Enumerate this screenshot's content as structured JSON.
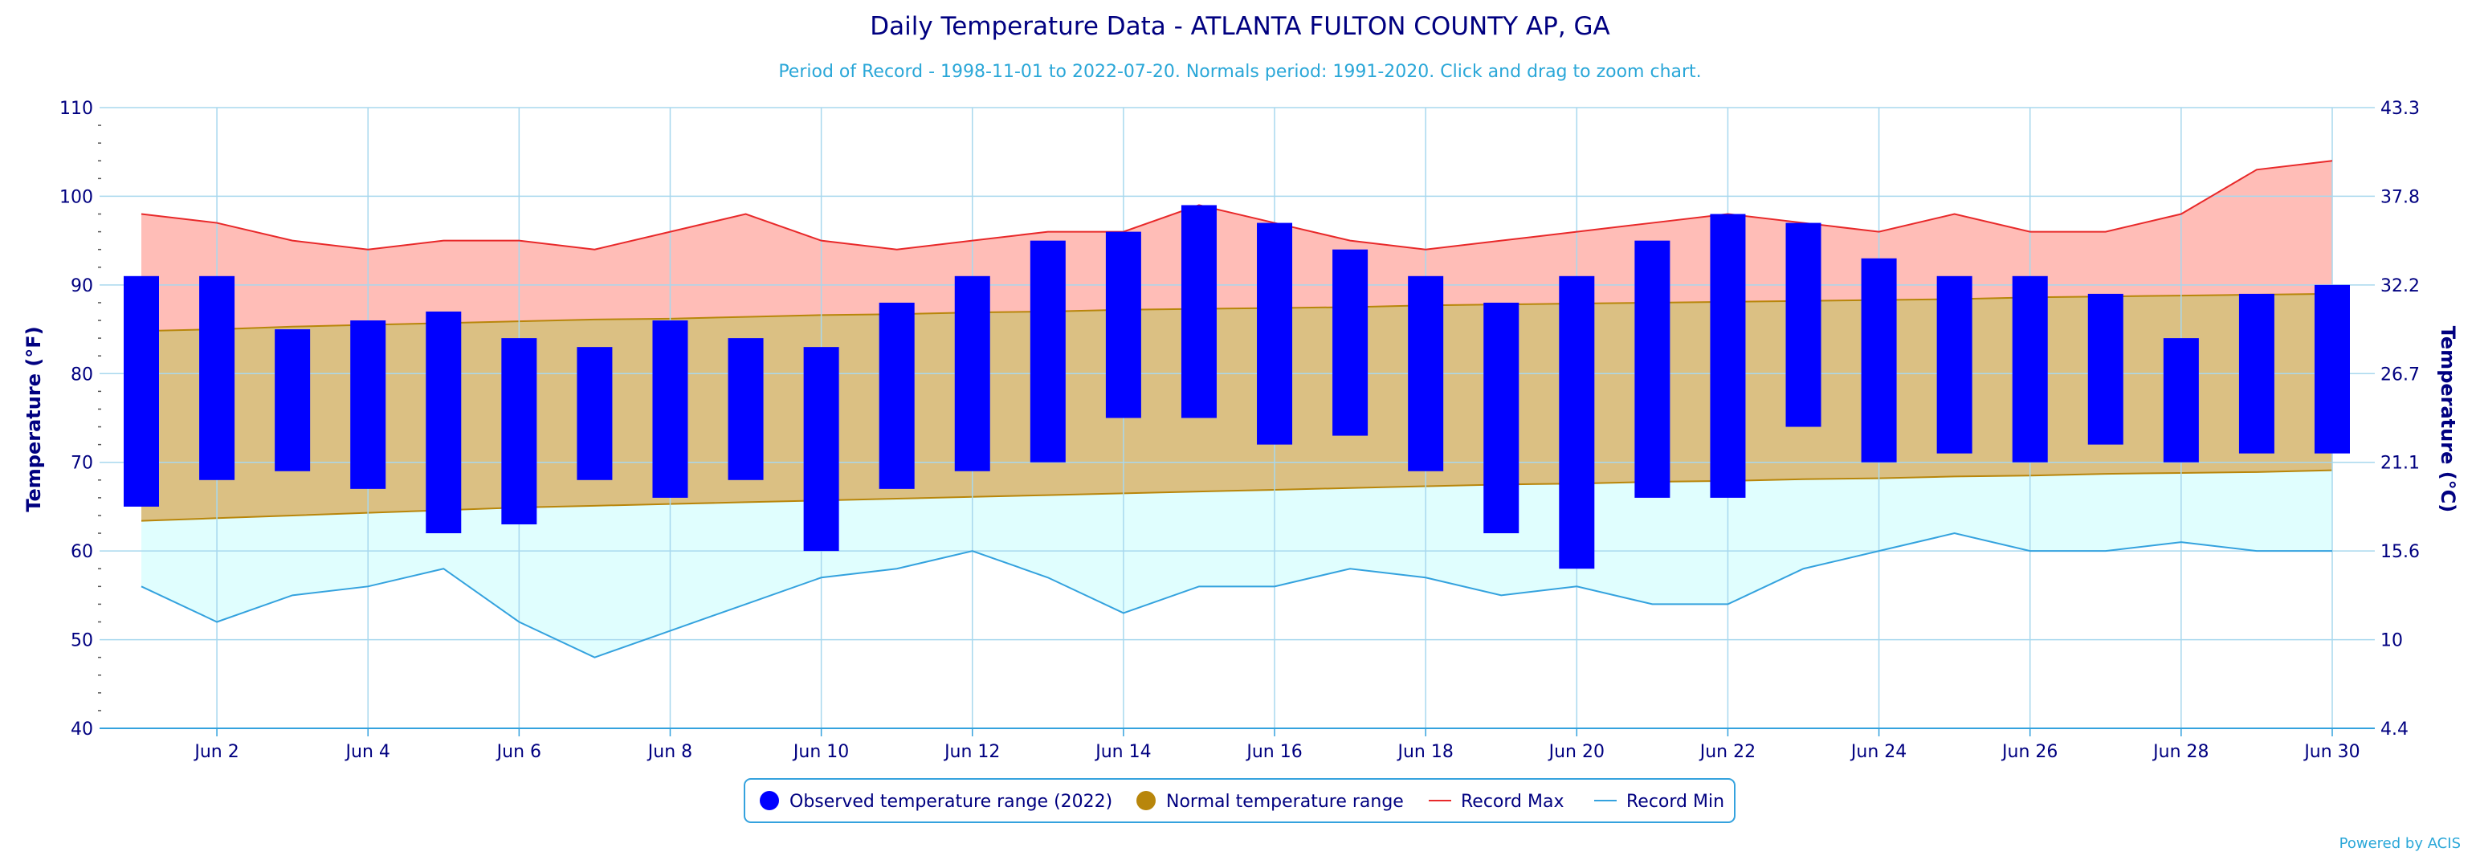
{
  "chart_data": {
    "type": "bar",
    "title": "Daily Temperature Data - ATLANTA FULTON COUNTY AP, GA",
    "subtitle": "Period of Record - 1998-11-01 to 2022-07-20. Normals period: 1991-2020. Click and drag to zoom chart.",
    "ylabel": "Temperature (°F)",
    "y2label": "Temperature (°C)",
    "ylim": [
      40,
      110
    ],
    "yticks": [
      40,
      50,
      60,
      70,
      80,
      90,
      100,
      110
    ],
    "y2ticks": [
      "4.4",
      "10",
      "15.6",
      "21.1",
      "26.7",
      "32.2",
      "37.8",
      "43.3"
    ],
    "xlim": [
      1,
      30
    ],
    "xticks": [
      {
        "day": 2,
        "label": "Jun 2"
      },
      {
        "day": 4,
        "label": "Jun 4"
      },
      {
        "day": 6,
        "label": "Jun 6"
      },
      {
        "day": 8,
        "label": "Jun 8"
      },
      {
        "day": 10,
        "label": "Jun 10"
      },
      {
        "day": 12,
        "label": "Jun 12"
      },
      {
        "day": 14,
        "label": "Jun 14"
      },
      {
        "day": 16,
        "label": "Jun 16"
      },
      {
        "day": 18,
        "label": "Jun 18"
      },
      {
        "day": 20,
        "label": "Jun 20"
      },
      {
        "day": 22,
        "label": "Jun 22"
      },
      {
        "day": 24,
        "label": "Jun 24"
      },
      {
        "day": 26,
        "label": "Jun 26"
      },
      {
        "day": 28,
        "label": "Jun 28"
      },
      {
        "day": 30,
        "label": "Jun 30"
      }
    ],
    "days": [
      1,
      2,
      3,
      4,
      5,
      6,
      7,
      8,
      9,
      10,
      11,
      12,
      13,
      14,
      15,
      16,
      17,
      18,
      19,
      20,
      21,
      22,
      23,
      24,
      25,
      26,
      27,
      28,
      29,
      30
    ],
    "series": [
      {
        "name": "Observed temperature range (2022)",
        "low": [
          65,
          68,
          69,
          67,
          62,
          63,
          68,
          66,
          68,
          60,
          67,
          69,
          70,
          75,
          75,
          72,
          73,
          69,
          62,
          58,
          66,
          66,
          74,
          70,
          71,
          70,
          72,
          70,
          71,
          71
        ],
        "high": [
          91,
          91,
          85,
          86,
          87,
          84,
          83,
          86,
          84,
          83,
          88,
          91,
          95,
          96,
          99,
          97,
          94,
          91,
          88,
          91,
          95,
          98,
          97,
          93,
          91,
          91,
          89,
          84,
          89,
          90
        ]
      },
      {
        "name": "Normal temperature range",
        "low": [
          63.4,
          63.7,
          64.0,
          64.3,
          64.6,
          64.9,
          65.1,
          65.3,
          65.5,
          65.7,
          65.9,
          66.1,
          66.3,
          66.5,
          66.7,
          66.9,
          67.1,
          67.3,
          67.5,
          67.6,
          67.8,
          67.9,
          68.1,
          68.2,
          68.4,
          68.5,
          68.7,
          68.8,
          68.9,
          69.1
        ],
        "high": [
          84.8,
          85.0,
          85.3,
          85.5,
          85.7,
          85.9,
          86.1,
          86.2,
          86.4,
          86.6,
          86.7,
          86.9,
          87.0,
          87.2,
          87.3,
          87.4,
          87.5,
          87.7,
          87.8,
          87.9,
          88.0,
          88.1,
          88.2,
          88.3,
          88.4,
          88.6,
          88.7,
          88.8,
          88.9,
          89.0
        ]
      },
      {
        "name": "Record Max",
        "values": [
          98,
          97,
          95,
          94,
          95,
          95,
          94,
          96,
          98,
          95,
          94,
          95,
          96,
          96,
          99,
          97,
          95,
          94,
          95,
          96,
          97,
          98,
          97,
          96,
          98,
          96,
          96,
          98,
          103,
          104
        ]
      },
      {
        "name": "Record Min",
        "values": [
          56,
          52,
          55,
          56,
          58,
          52,
          48,
          51,
          54,
          57,
          58,
          60,
          57,
          53,
          56,
          56,
          58,
          57,
          55,
          56,
          54,
          54,
          58,
          60,
          62,
          60,
          60,
          61,
          60,
          60
        ]
      }
    ],
    "legend_position": "bottom-center",
    "grid": true,
    "credit": "Powered by ACIS",
    "colors": {
      "observed": "#0000ff",
      "normal_fill": "#dbc083",
      "normal_line": "#b8860b",
      "normal_marker": "#b8860b",
      "record_max": "#e8292a",
      "record_max_fill": "#ffbdb7",
      "record_min": "#34a2de",
      "record_min_fill": "#e0fefe",
      "grid": "#a8d8ee",
      "text": "#000080"
    }
  }
}
